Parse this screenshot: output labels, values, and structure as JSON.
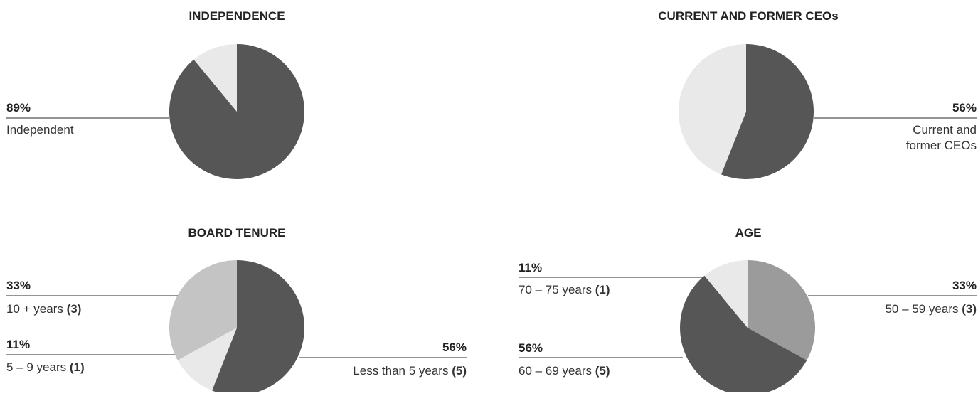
{
  "colors": {
    "dark": "#575657",
    "mid": "#9b9b9b",
    "light": "#c4c4c4",
    "pale": "#e9e9e9",
    "line": "#555555"
  },
  "chart_data": [
    {
      "type": "pie",
      "title": "INDEPENDENCE",
      "slices": [
        {
          "value": 89,
          "color": "dark"
        },
        {
          "value": 11,
          "color": "pale"
        }
      ],
      "annotations": [
        {
          "pct": "89%",
          "label": "Independent",
          "count": ""
        }
      ]
    },
    {
      "type": "pie",
      "title": "CURRENT AND FORMER CEOs",
      "slices": [
        {
          "value": 56,
          "color": "dark"
        },
        {
          "value": 44,
          "color": "pale"
        }
      ],
      "annotations": [
        {
          "pct": "56%",
          "label": "Current and",
          "label2": "former CEOs",
          "count": ""
        }
      ]
    },
    {
      "type": "pie",
      "title": "BOARD TENURE",
      "slices": [
        {
          "value": 56,
          "color": "dark"
        },
        {
          "value": 11,
          "color": "pale"
        },
        {
          "value": 33,
          "color": "light"
        }
      ],
      "annotations": [
        {
          "pct": "33%",
          "label": "10 + years",
          "count": "(3)"
        },
        {
          "pct": "11%",
          "label": "5 – 9 years",
          "count": "(1)"
        },
        {
          "pct": "56%",
          "label": "Less than 5 years",
          "count": "(5)"
        }
      ]
    },
    {
      "type": "pie",
      "title": "AGE",
      "slices": [
        {
          "value": 33,
          "color": "mid"
        },
        {
          "value": 56,
          "color": "dark"
        },
        {
          "value": 11,
          "color": "pale"
        }
      ],
      "annotations": [
        {
          "pct": "11%",
          "label": "70 – 75 years",
          "count": "(1)"
        },
        {
          "pct": "56%",
          "label": "60 – 69 years",
          "count": "(5)"
        },
        {
          "pct": "33%",
          "label": "50 – 59 years",
          "count": "(3)"
        }
      ]
    }
  ]
}
